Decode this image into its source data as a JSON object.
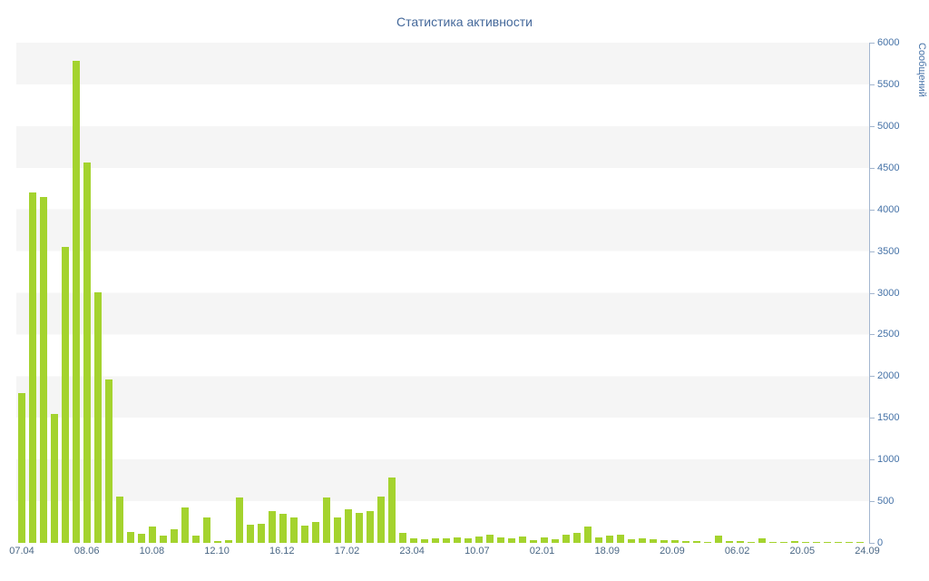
{
  "title": "Статистика активности",
  "colors": {
    "bar": "#a4d32e",
    "band": "#f5f5f5",
    "axis_line": "#a3b6cf",
    "title_text": "#44689a",
    "y_label_text": "#4572a7",
    "x_label_text": "#4a6785"
  },
  "chart_data": {
    "type": "bar",
    "title": "Статистика активности",
    "xlabel": "",
    "ylabel": "Сообщений",
    "ylim": [
      0,
      6000
    ],
    "y_tick_step": 500,
    "y_tick_labels": [
      "0",
      "500",
      "1000",
      "1500",
      "2000",
      "2500",
      "3000",
      "3500",
      "4000",
      "4500",
      "5000",
      "5500",
      "6000"
    ],
    "x_tick_labels": [
      "07.04",
      "08.06",
      "10.08",
      "12.10",
      "16.12",
      "17.02",
      "23.04",
      "10.07",
      "02.01",
      "18.09",
      "20.09",
      "06.02",
      "20.05",
      "24.09"
    ],
    "grid": "horizontal-bands",
    "legend_position": "none",
    "values": [
      1800,
      4200,
      4150,
      1550,
      3550,
      5780,
      4560,
      3010,
      1960,
      550,
      130,
      110,
      200,
      90,
      160,
      430,
      90,
      310,
      25,
      35,
      540,
      215,
      225,
      380,
      350,
      300,
      205,
      255,
      540,
      310,
      400,
      360,
      380,
      560,
      780,
      120,
      50,
      40,
      55,
      50,
      65,
      55,
      80,
      95,
      60,
      55,
      75,
      35,
      60,
      45,
      100,
      120,
      200,
      60,
      90,
      95,
      40,
      55,
      45,
      35,
      30,
      25,
      20,
      15,
      90,
      20,
      25,
      15,
      50,
      15,
      10,
      20,
      10,
      8,
      12,
      8,
      10,
      5
    ]
  }
}
